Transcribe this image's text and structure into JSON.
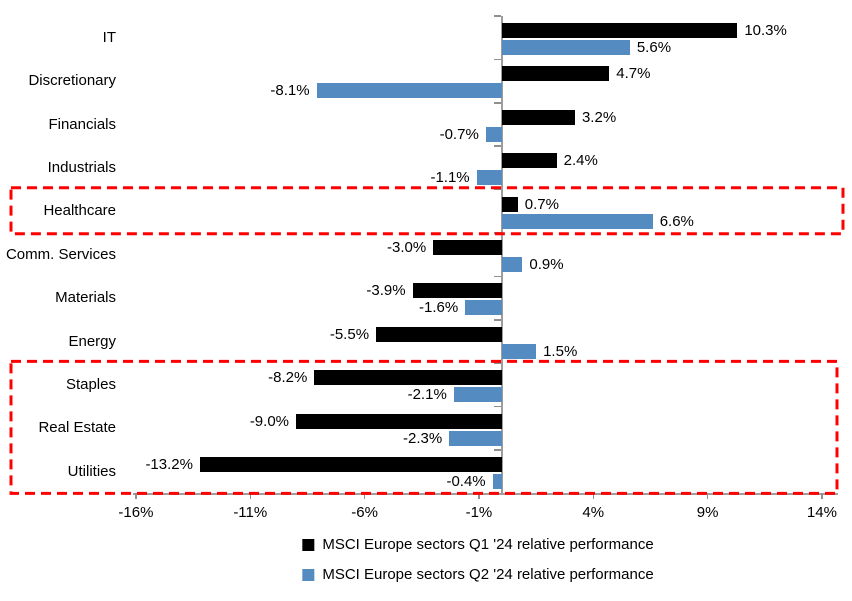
{
  "chart_data": {
    "type": "bar",
    "orientation": "horizontal",
    "title": "",
    "xlabel": "",
    "ylabel": "",
    "categories": [
      "IT",
      "Discretionary",
      "Financials",
      "Industrials",
      "Healthcare",
      "Comm. Services",
      "Materials",
      "Energy",
      "Staples",
      "Real Estate",
      "Utilities"
    ],
    "series": [
      {
        "name": "MSCI Europe sectors Q1 '24 relative performance",
        "color": "#000000",
        "values": [
          10.3,
          4.7,
          3.2,
          2.4,
          0.7,
          -3.0,
          -3.9,
          -5.5,
          -8.2,
          -9.0,
          -13.2
        ],
        "labels": [
          "10.3%",
          "4.7%",
          "3.2%",
          "2.4%",
          "0.7%",
          "-3.0%",
          "-3.9%",
          "-5.5%",
          "-8.2%",
          "-9.0%",
          "-13.2%"
        ]
      },
      {
        "name": "MSCI Europe sectors Q2 '24 relative performance",
        "color": "#548BC0",
        "values": [
          5.6,
          -8.1,
          -0.7,
          -1.1,
          6.6,
          0.9,
          -1.6,
          1.5,
          -2.1,
          -2.3,
          -0.4
        ],
        "labels": [
          "5.6%",
          "-8.1%",
          "-0.7%",
          "-1.1%",
          "6.6%",
          "0.9%",
          "-1.6%",
          "1.5%",
          "-2.1%",
          "-2.3%",
          "-0.4%"
        ]
      }
    ],
    "x_ticks": [
      {
        "label": "-16%",
        "value": -16
      },
      {
        "label": "-11%",
        "value": -11
      },
      {
        "label": "-6%",
        "value": -6
      },
      {
        "label": "-1%",
        "value": -1
      },
      {
        "label": "4%",
        "value": 4
      },
      {
        "label": "9%",
        "value": 9
      },
      {
        "label": "14%",
        "value": 14
      }
    ],
    "xlim": [
      -16,
      14
    ],
    "grid": false,
    "legend_position": "bottom",
    "axis_color": "#9d9d9d",
    "highlight_color": "#FF0000",
    "highlights": [
      {
        "from": "Healthcare",
        "to": "Healthcare"
      },
      {
        "from": "Staples",
        "to": "Utilities"
      }
    ]
  }
}
